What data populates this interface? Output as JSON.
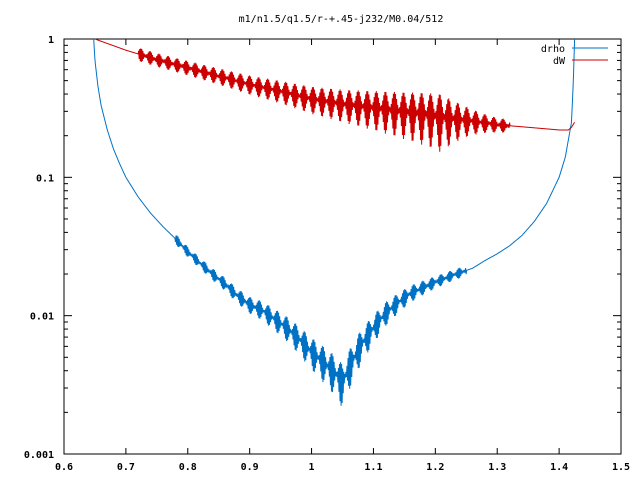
{
  "chart_data": {
    "type": "line",
    "title": "m1/n1.5/q1.5/r-+.45-j232/M0.04/512",
    "xlabel": "",
    "ylabel": "",
    "xlim": [
      0.6,
      1.5
    ],
    "ylim": [
      0.001,
      1
    ],
    "yscale": "log",
    "grid": false,
    "legend": "top-right",
    "x_ticks": [
      {
        "value": 0.6,
        "label": "0.6"
      },
      {
        "value": 0.7,
        "label": "0.7"
      },
      {
        "value": 0.8,
        "label": "0.8"
      },
      {
        "value": 0.9,
        "label": "0.9"
      },
      {
        "value": 1.0,
        "label": "1"
      },
      {
        "value": 1.1,
        "label": "1.1"
      },
      {
        "value": 1.2,
        "label": "1.2"
      },
      {
        "value": 1.3,
        "label": "1.3"
      },
      {
        "value": 1.4,
        "label": "1.4"
      },
      {
        "value": 1.5,
        "label": "1.5"
      }
    ],
    "y_ticks": [
      {
        "value": 1,
        "label": "1"
      },
      {
        "value": 0.1,
        "label": "0.1"
      },
      {
        "value": 0.01,
        "label": "0.01"
      },
      {
        "value": 0.001,
        "label": "0.001"
      }
    ],
    "series": [
      {
        "name": "drho",
        "color": "#0072c6",
        "x": [
          0.648,
          0.65,
          0.655,
          0.66,
          0.67,
          0.68,
          0.69,
          0.7,
          0.72,
          0.74,
          0.76,
          0.78,
          0.8,
          0.82,
          0.84,
          0.86,
          0.88,
          0.9,
          0.92,
          0.94,
          0.96,
          0.98,
          1.0,
          1.02,
          1.04,
          1.05,
          1.06,
          1.08,
          1.1,
          1.12,
          1.14,
          1.16,
          1.18,
          1.2,
          1.22,
          1.24,
          1.26,
          1.28,
          1.3,
          1.32,
          1.34,
          1.36,
          1.38,
          1.4,
          1.41,
          1.42,
          1.423,
          1.425
        ],
        "y": [
          1.0,
          0.7,
          0.45,
          0.33,
          0.22,
          0.16,
          0.125,
          0.1,
          0.072,
          0.055,
          0.044,
          0.036,
          0.029,
          0.024,
          0.02,
          0.017,
          0.014,
          0.012,
          0.011,
          0.0095,
          0.0082,
          0.0068,
          0.0055,
          0.0046,
          0.0038,
          0.0033,
          0.0042,
          0.0062,
          0.0082,
          0.0105,
          0.0125,
          0.0145,
          0.016,
          0.0175,
          0.019,
          0.0205,
          0.022,
          0.025,
          0.028,
          0.032,
          0.038,
          0.048,
          0.065,
          0.1,
          0.14,
          0.25,
          0.5,
          1.0
        ],
        "noise": {
          "x_from": 0.78,
          "x_to": 1.25,
          "peak_at": 1.05,
          "max_relative_amplitude": 0.35
        }
      },
      {
        "name": "dW",
        "color": "#cc0000",
        "x": [
          0.65,
          0.7,
          0.75,
          0.8,
          0.85,
          0.9,
          0.95,
          1.0,
          1.05,
          1.1,
          1.15,
          1.18,
          1.2,
          1.22,
          1.25,
          1.3,
          1.35,
          1.4,
          1.415,
          1.42,
          1.425
        ],
        "y": [
          1.0,
          0.83,
          0.71,
          0.62,
          0.54,
          0.47,
          0.42,
          0.37,
          0.34,
          0.32,
          0.3,
          0.29,
          0.28,
          0.27,
          0.26,
          0.24,
          0.23,
          0.22,
          0.22,
          0.23,
          0.25
        ],
        "noise": {
          "x_from": 0.72,
          "x_to": 1.32,
          "peak_at": 1.21,
          "max_relative_amplitude": 0.45
        }
      }
    ]
  }
}
